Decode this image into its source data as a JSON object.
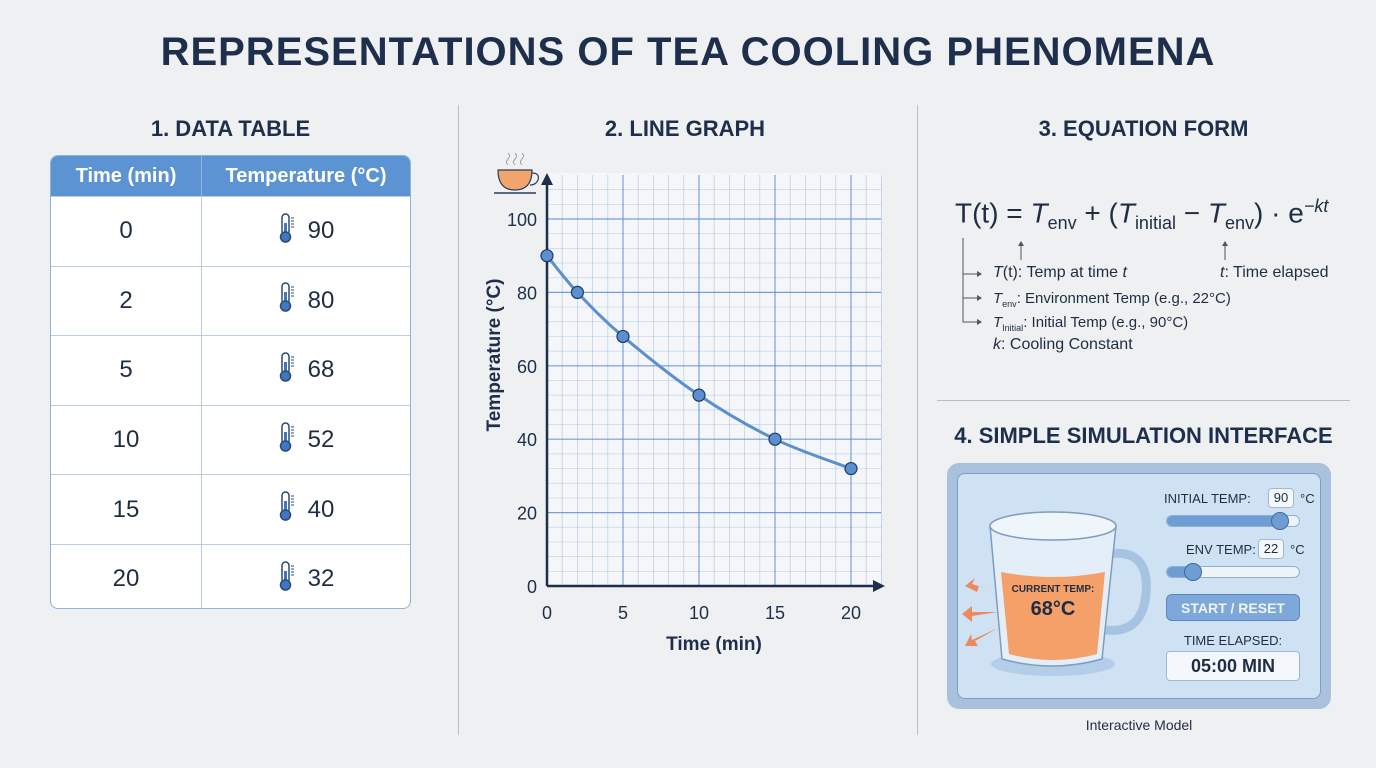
{
  "title": "REPRESENTATIONS OF TEA COOLING PHENOMENA",
  "sections": {
    "table": "1. DATA TABLE",
    "graph": "2. LINE GRAPH",
    "equation": "3. EQUATION FORM",
    "simulation": "4. SIMPLE SIMULATION INTERFACE"
  },
  "table": {
    "headers": [
      "Time (min)",
      "Temperature (°C)"
    ],
    "rows": [
      [
        "0",
        "90"
      ],
      [
        "2",
        "80"
      ],
      [
        "5",
        "68"
      ],
      [
        "10",
        "52"
      ],
      [
        "15",
        "40"
      ],
      [
        "20",
        "32"
      ]
    ],
    "icon": "thermometer-icon"
  },
  "chart_data": {
    "type": "line",
    "x": [
      0,
      2,
      5,
      10,
      15,
      20
    ],
    "y": [
      90,
      80,
      68,
      52,
      40,
      32
    ],
    "xlabel": "Time (min)",
    "ylabel": "Temperature (°C)",
    "xticks": [
      "0",
      "5",
      "10",
      "15",
      "20"
    ],
    "yticks": [
      "0",
      "20",
      "40",
      "60",
      "80",
      "100"
    ],
    "xlim": [
      0,
      22
    ],
    "ylim": [
      0,
      110
    ],
    "grid": true,
    "color": "#5b8fd0",
    "icon": "teacup-icon"
  },
  "equation": {
    "lhs": "T(t) = ",
    "t1": "T",
    "s1": "env",
    "plus": " + (",
    "t2": "T",
    "s2": "initial",
    "minus": " − ",
    "t3": "T",
    "s3": "env",
    "close": ") · e",
    "exp": "−kt",
    "notes": {
      "tt_a": "T",
      "tt_b": "(t)",
      "tt_c": ": Temp at time ",
      "tt_d": "t",
      "t_a": "t",
      "t_b": ": Time elapsed",
      "env_a": "T",
      "env_b": "env",
      "env_c": ": Environment Temp (e.g., 22°C)",
      "init_a": "T",
      "init_b": "Initial",
      "init_c": ": Initial Temp (e.g., 90°C)",
      "k_a": "k",
      "k_b": ": Cooling Constant"
    }
  },
  "simulation": {
    "current_label": "CURRENT TEMP:",
    "current_value": "68°C",
    "initial_label": "INITIAL TEMP:",
    "initial_value": "90",
    "env_label": "ENV TEMP:",
    "env_value": "22",
    "unit": "°C",
    "initial_slider": 0.85,
    "env_slider": 0.2,
    "button": "START / RESET",
    "elapsed_label": "TIME ELAPSED:",
    "elapsed_value": "05:00 MIN",
    "caption": "Interactive Model",
    "colors": {
      "tea": "#f4a068",
      "panel": "#cfe2f3",
      "accent": "#6e9dd4"
    }
  }
}
